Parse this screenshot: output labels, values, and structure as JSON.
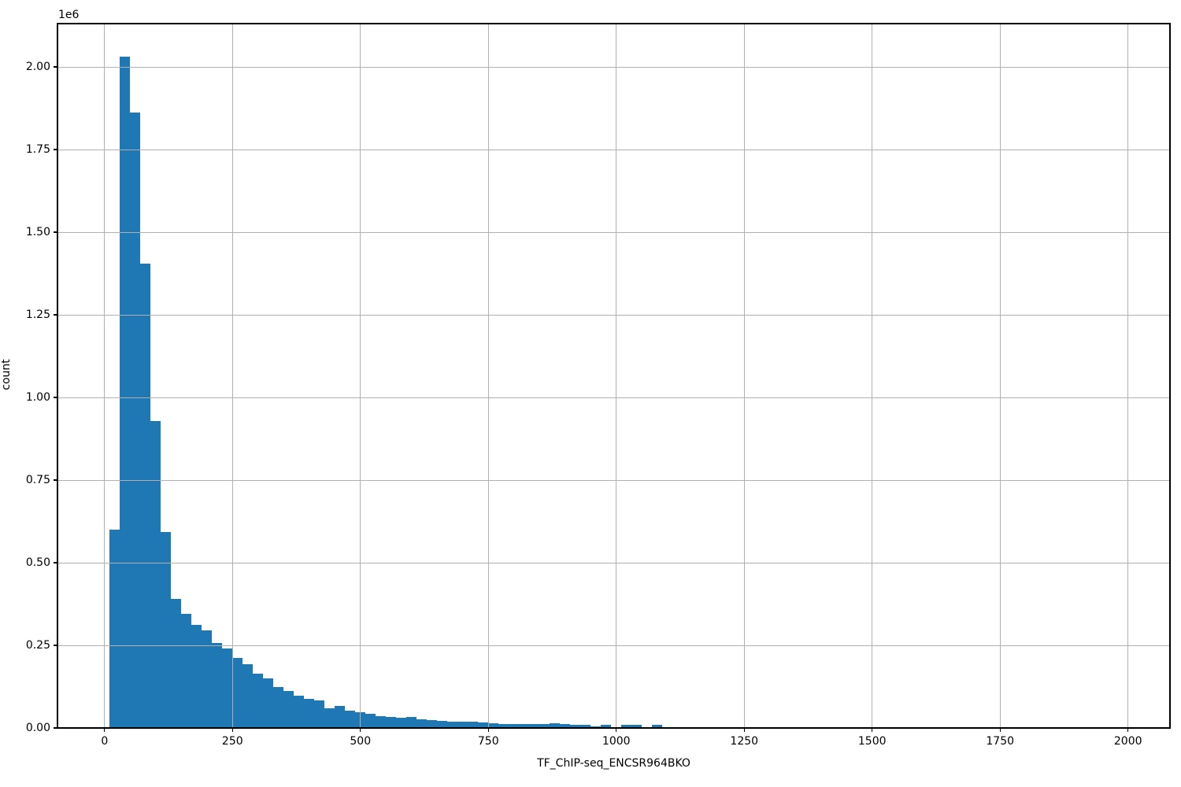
{
  "chart_data": {
    "type": "bar",
    "subtype": "histogram",
    "title": "",
    "xlabel": "TF_ChIP-seq_ENCSR964BKO",
    "ylabel": "count",
    "y_offset_text": "1e6",
    "legend": null,
    "grid": true,
    "bar_color": "#1f77b4",
    "grid_color": "#b0b0b0",
    "axis_color": "#000000",
    "background_color": "#ffffff",
    "xlim": [
      -92,
      2082
    ],
    "ylim": [
      0,
      2131000
    ],
    "xticks": {
      "values": [
        0,
        250,
        500,
        750,
        1000,
        1250,
        1500,
        1750,
        2000
      ],
      "labels": [
        "0",
        "250",
        "500",
        "750",
        "1000",
        "1250",
        "1500",
        "1750",
        "2000"
      ]
    },
    "yticks": {
      "values": [
        0,
        250000,
        500000,
        750000,
        1000000,
        1250000,
        1500000,
        1750000,
        2000000
      ],
      "labels": [
        "0.00",
        "0.25",
        "0.50",
        "0.75",
        "1.00",
        "1.25",
        "1.50",
        "1.75",
        "2.00"
      ]
    },
    "bin_width": 20,
    "bin_starts": [
      10,
      30,
      50,
      70,
      90,
      110,
      130,
      150,
      170,
      190,
      210,
      230,
      250,
      270,
      290,
      310,
      330,
      350,
      370,
      390,
      410,
      430,
      450,
      470,
      490,
      510,
      530,
      550,
      570,
      590,
      610,
      630,
      650,
      670,
      690,
      710,
      730,
      750,
      770,
      790,
      810,
      830,
      850,
      870,
      890,
      910,
      930,
      950,
      970,
      990,
      1010,
      1030,
      1050,
      1070,
      1090
    ],
    "counts": [
      600000,
      2030000,
      1861000,
      1405000,
      928000,
      594000,
      390000,
      345000,
      312000,
      296000,
      257000,
      240000,
      213000,
      193000,
      165000,
      151000,
      125000,
      111000,
      98000,
      87000,
      83000,
      59000,
      66000,
      53000,
      48000,
      42000,
      36000,
      33000,
      31000,
      34000,
      26000,
      25000,
      22000,
      20000,
      18000,
      20000,
      16000,
      14000,
      13000,
      12000,
      12000,
      12000,
      12000,
      14000,
      11000,
      9000,
      9000,
      4000,
      9000,
      2000,
      10000,
      10000,
      2000,
      10000,
      1000
    ]
  }
}
